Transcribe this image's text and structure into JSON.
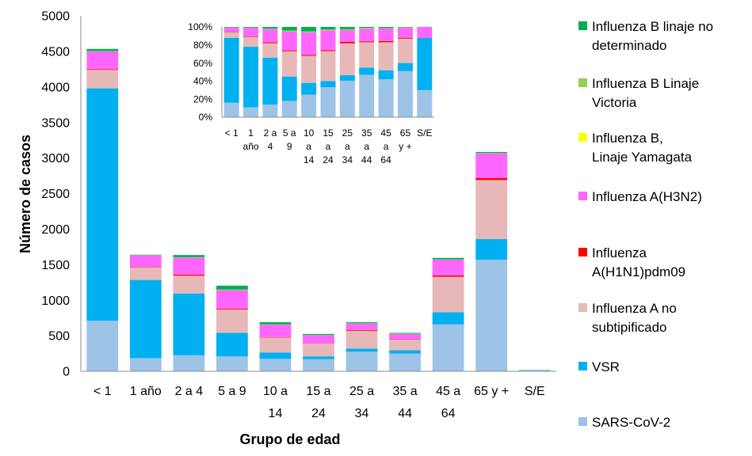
{
  "chart_data": [
    {
      "type": "bar",
      "stacked": true,
      "title": "",
      "xlabel": "Grupo de edad",
      "ylabel": "Número de casos",
      "ylim": [
        0,
        5000
      ],
      "yticks": [
        "0",
        "500",
        "1000",
        "1500",
        "2000",
        "2500",
        "3000",
        "3500",
        "4000",
        "4500",
        "5000"
      ],
      "grid": false,
      "legend_position": "right",
      "categories": [
        "< 1",
        "1 año",
        "2 a 4",
        "5 a 9",
        "10 a 14",
        "15 a 24",
        "25 a 34",
        "35 a 44",
        "45 a 64",
        "65 y +",
        "S/E"
      ],
      "category_lines": [
        [
          "< 1"
        ],
        [
          "1 año"
        ],
        [
          "2 a 4"
        ],
        [
          "5 a 9"
        ],
        [
          "10 a",
          "14"
        ],
        [
          "15 a",
          "24"
        ],
        [
          "25 a",
          "34"
        ],
        [
          "35 a",
          "44"
        ],
        [
          "45 a",
          "64"
        ],
        [
          "65 y +"
        ],
        [
          "S/E"
        ]
      ],
      "series": [
        {
          "name": "SARS-CoV-2",
          "color": "#9DC3E6",
          "values": [
            710,
            185,
            225,
            210,
            175,
            170,
            275,
            250,
            660,
            1570,
            15
          ]
        },
        {
          "name": "VSR",
          "color": "#00B0F0",
          "values": [
            3270,
            1100,
            870,
            330,
            90,
            40,
            45,
            45,
            170,
            290,
            5
          ]
        },
        {
          "name": "Influenza A no subtipificado",
          "color": "#E6B9B8",
          "values": [
            260,
            180,
            250,
            330,
            210,
            180,
            250,
            150,
            500,
            830,
            0
          ]
        },
        {
          "name": "Influenza A(H1N1)pdm09",
          "color": "#FF0000",
          "values": [
            10,
            5,
            15,
            10,
            5,
            3,
            10,
            5,
            20,
            30,
            0
          ]
        },
        {
          "name": "Influenza A(H3N2)",
          "color": "#FF66FF",
          "values": [
            250,
            160,
            240,
            260,
            175,
            115,
            90,
            75,
            220,
            345,
            0
          ]
        },
        {
          "name": "Influenza B,\n Linaje Yamagata",
          "color": "#FFFF00",
          "values": [
            0,
            0,
            0,
            0,
            0,
            0,
            0,
            0,
            0,
            0,
            0
          ]
        },
        {
          "name": "Influenza B Linaje\nVictoria",
          "color": "#92D050",
          "values": [
            5,
            3,
            5,
            10,
            5,
            2,
            5,
            5,
            5,
            5,
            0
          ]
        },
        {
          "name": "Influenza B linaje no\ndeterminado",
          "color": "#00B050",
          "values": [
            30,
            7,
            30,
            55,
            30,
            15,
            15,
            10,
            20,
            15,
            0
          ]
        }
      ]
    },
    {
      "type": "bar",
      "stacked": true,
      "percent": true,
      "title": "",
      "ylim": [
        0,
        100
      ],
      "yticks": [
        "0%",
        "20%",
        "40%",
        "60%",
        "80%",
        "100%"
      ],
      "categories": [
        "< 1",
        "1 año",
        "2 a 4",
        "5 a 9",
        "10 a 14",
        "15 a 24",
        "25 a 34",
        "35 a 44",
        "45 a 64",
        "65 y +",
        "S/E"
      ],
      "category_lines": [
        [
          "< 1"
        ],
        [
          "1",
          "año"
        ],
        [
          "2 a",
          "4"
        ],
        [
          "5 a",
          "9"
        ],
        [
          "10",
          "a",
          "14"
        ],
        [
          "15",
          "a",
          "24"
        ],
        [
          "25",
          "a",
          "34"
        ],
        [
          "35",
          "a",
          "44"
        ],
        [
          "45",
          "a",
          "64"
        ],
        [
          "65",
          "y +"
        ],
        [
          "S/E"
        ]
      ],
      "series": [
        {
          "name": "SARS-CoV-2",
          "color": "#9DC3E6",
          "values": [
            16,
            11,
            14,
            18,
            25,
            33,
            40,
            47,
            42,
            51,
            30
          ]
        },
        {
          "name": "VSR",
          "color": "#00B0F0",
          "values": [
            72,
            67,
            52,
            27,
            13,
            7,
            6,
            8,
            10,
            9,
            58
          ]
        },
        {
          "name": "Influenza A no subtipificado",
          "color": "#E6B9B8",
          "values": [
            6,
            11,
            16,
            28,
            30,
            33,
            35,
            28,
            31,
            27,
            0
          ]
        },
        {
          "name": "Influenza A(H1N1)pdm09",
          "color": "#FF0000",
          "values": [
            0.5,
            0.5,
            1,
            1,
            1,
            1,
            1.5,
            1,
            1.3,
            1,
            0
          ]
        },
        {
          "name": "Influenza A(H3N2)",
          "color": "#FF66FF",
          "values": [
            4.5,
            9.5,
            14.5,
            21,
            25,
            22,
            13,
            14,
            14,
            11,
            12
          ]
        },
        {
          "name": "Influenza B,\n Linaje Yamagata",
          "color": "#FFFF00",
          "values": [
            0,
            0,
            0,
            0,
            0,
            0,
            0,
            0,
            0,
            0,
            0
          ]
        },
        {
          "name": "Influenza B Linaje\nVictoria",
          "color": "#92D050",
          "values": [
            0.3,
            0.2,
            0.5,
            1,
            1,
            1,
            1,
            1,
            0.5,
            0.5,
            0
          ]
        },
        {
          "name": "Influenza B linaje no\ndeterminado",
          "color": "#00B050",
          "values": [
            0.7,
            0.8,
            2,
            4,
            5,
            2.7,
            2.5,
            1,
            1.2,
            0.5,
            0
          ]
        }
      ]
    }
  ],
  "legend": [
    {
      "label": "Influenza B linaje no\ndeterminado",
      "color": "#00B050"
    },
    {
      "label": "Influenza B Linaje\nVictoria",
      "color": "#92D050"
    },
    {
      "label": "Influenza B,\n Linaje Yamagata",
      "color": "#FFFF00"
    },
    {
      "label": "Influenza A(H3N2)",
      "color": "#FF66FF"
    },
    {
      "label": "Influenza\nA(H1N1)pdm09",
      "color": "#FF0000"
    },
    {
      "label": "Influenza A no\nsubtipificado",
      "color": "#E6B9B8"
    },
    {
      "label": "VSR",
      "color": "#00B0F0"
    },
    {
      "label": "SARS-CoV-2",
      "color": "#9DC3E6"
    }
  ]
}
